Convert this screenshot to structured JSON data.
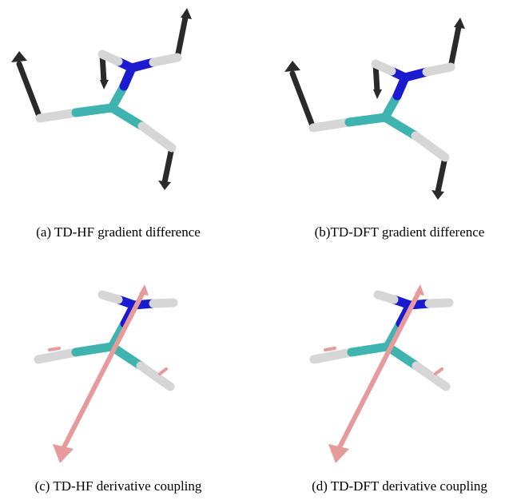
{
  "figure": {
    "panels": [
      {
        "caption": "(a) TD-HF gradient difference"
      },
      {
        "caption": "(b)TD-DFT gradient difference"
      },
      {
        "caption": "(c) TD-HF derivative coupling"
      },
      {
        "caption": "(d) TD-DFT derivative coupling"
      }
    ]
  }
}
